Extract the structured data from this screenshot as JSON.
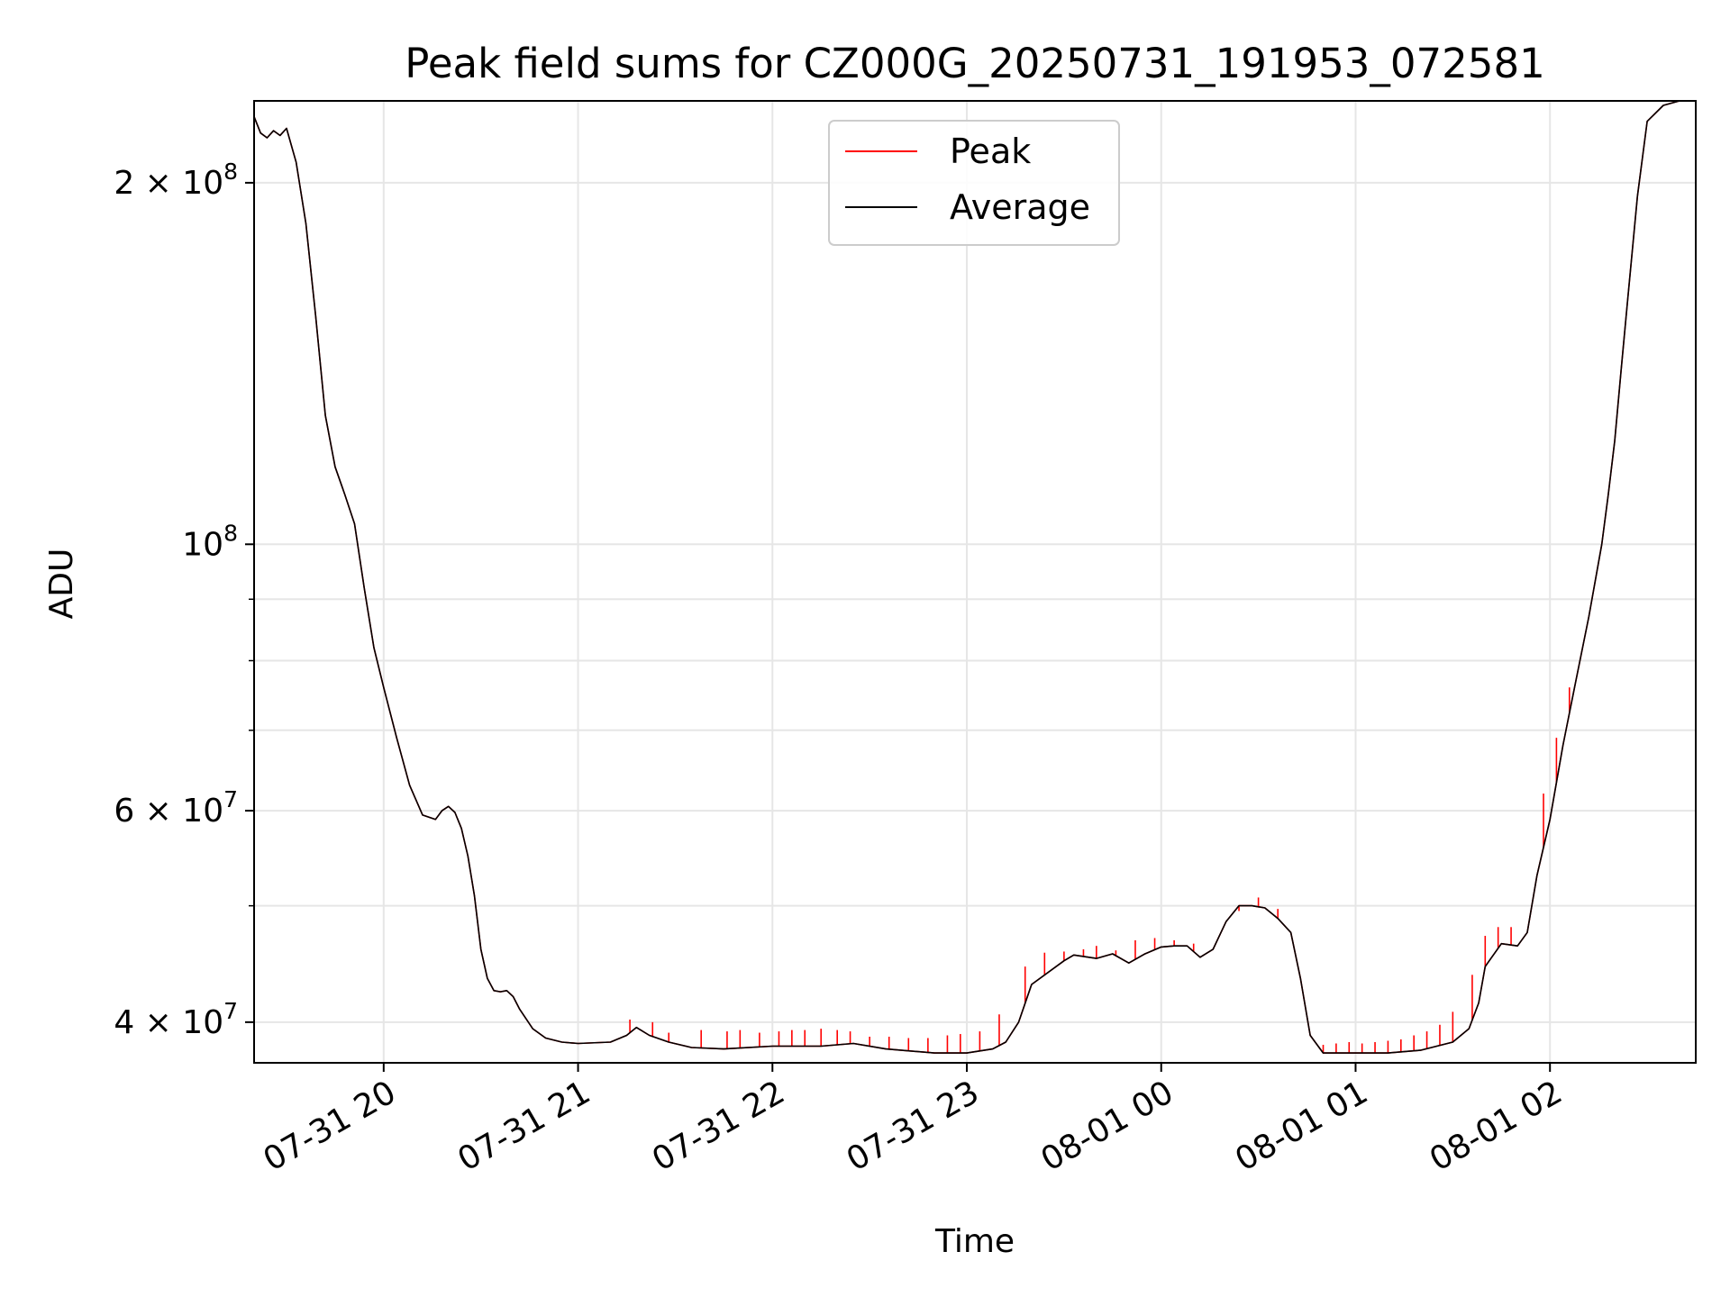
{
  "chart_data": {
    "type": "line",
    "title": "Peak field sums for CZ000G_20250731_191953_072581",
    "xlabel": "Time",
    "ylabel": "ADU",
    "y_scale": "log",
    "ylim": [
      37000000,
      234000000
    ],
    "xlim": [
      "2025-07-31 19:20",
      "2025-08-01 02:45"
    ],
    "grid": true,
    "legend": "upper center",
    "x_ticks": [
      {
        "value": "2025-07-31 20:00",
        "label": "07-31 20"
      },
      {
        "value": "2025-07-31 21:00",
        "label": "07-31 21"
      },
      {
        "value": "2025-07-31 22:00",
        "label": "07-31 22"
      },
      {
        "value": "2025-07-31 23:00",
        "label": "07-31 23"
      },
      {
        "value": "2025-08-01 00:00",
        "label": "08-01 00"
      },
      {
        "value": "2025-08-01 01:00",
        "label": "08-01 01"
      },
      {
        "value": "2025-08-01 02:00",
        "label": "08-01 02"
      }
    ],
    "y_ticks": [
      {
        "value": 40000000,
        "base": "4 × 10",
        "exp": "7"
      },
      {
        "value": 60000000,
        "base": "6 × 10",
        "exp": "7"
      },
      {
        "value": 100000000,
        "base": "10",
        "exp": "8"
      },
      {
        "value": 200000000,
        "base": "2 × 10",
        "exp": "8"
      }
    ],
    "y_minor": [
      50000000,
      70000000,
      80000000,
      90000000
    ],
    "series": [
      {
        "name": "Peak",
        "color": "#ff0000"
      },
      {
        "name": "Average",
        "color": "#000000",
        "x": [
          "2025-07-31 19:20",
          "2025-07-31 19:22",
          "2025-07-31 19:24",
          "2025-07-31 19:26",
          "2025-07-31 19:28",
          "2025-07-31 19:30",
          "2025-07-31 19:33",
          "2025-07-31 19:36",
          "2025-07-31 19:39",
          "2025-07-31 19:42",
          "2025-07-31 19:45",
          "2025-07-31 19:48",
          "2025-07-31 19:51",
          "2025-07-31 19:54",
          "2025-07-31 19:57",
          "2025-07-31 20:00",
          "2025-07-31 20:04",
          "2025-07-31 20:08",
          "2025-07-31 20:12",
          "2025-07-31 20:16",
          "2025-07-31 20:18",
          "2025-07-31 20:20",
          "2025-07-31 20:22",
          "2025-07-31 20:24",
          "2025-07-31 20:26",
          "2025-07-31 20:28",
          "2025-07-31 20:30",
          "2025-07-31 20:32",
          "2025-07-31 20:34",
          "2025-07-31 20:36",
          "2025-07-31 20:38",
          "2025-07-31 20:40",
          "2025-07-31 20:42",
          "2025-07-31 20:46",
          "2025-07-31 20:50",
          "2025-07-31 20:55",
          "2025-07-31 21:00",
          "2025-07-31 21:10",
          "2025-07-31 21:15",
          "2025-07-31 21:18",
          "2025-07-31 21:22",
          "2025-07-31 21:28",
          "2025-07-31 21:35",
          "2025-07-31 21:45",
          "2025-07-31 22:00",
          "2025-07-31 22:15",
          "2025-07-31 22:25",
          "2025-07-31 22:35",
          "2025-07-31 22:50",
          "2025-07-31 23:00",
          "2025-07-31 23:08",
          "2025-07-31 23:12",
          "2025-07-31 23:16",
          "2025-07-31 23:20",
          "2025-07-31 23:30",
          "2025-07-31 23:33",
          "2025-07-31 23:40",
          "2025-07-31 23:45",
          "2025-07-31 23:50",
          "2025-07-31 23:55",
          "2025-08-01 00:00",
          "2025-08-01 00:04",
          "2025-08-01 00:08",
          "2025-08-01 00:12",
          "2025-08-01 00:16",
          "2025-08-01 00:20",
          "2025-08-01 00:24",
          "2025-08-01 00:28",
          "2025-08-01 00:32",
          "2025-08-01 00:36",
          "2025-08-01 00:40",
          "2025-08-01 00:43",
          "2025-08-01 00:46",
          "2025-08-01 00:50",
          "2025-08-01 00:55",
          "2025-08-01 01:00",
          "2025-08-01 01:10",
          "2025-08-01 01:20",
          "2025-08-01 01:30",
          "2025-08-01 01:35",
          "2025-08-01 01:38",
          "2025-08-01 01:40",
          "2025-08-01 01:45",
          "2025-08-01 01:50",
          "2025-08-01 01:53",
          "2025-08-01 01:56",
          "2025-08-01 02:00",
          "2025-08-01 02:04",
          "2025-08-01 02:08",
          "2025-08-01 02:12",
          "2025-08-01 02:16",
          "2025-08-01 02:18",
          "2025-08-01 02:20",
          "2025-08-01 02:22",
          "2025-08-01 02:24",
          "2025-08-01 02:27",
          "2025-08-01 02:30",
          "2025-08-01 02:35",
          "2025-08-01 02:40",
          "2025-08-01 02:45"
        ],
        "y": [
          227000000,
          220000000,
          218000000,
          221000000,
          219000000,
          222000000,
          208000000,
          185000000,
          155000000,
          128000000,
          116000000,
          110000000,
          104000000,
          92000000,
          82000000,
          76000000,
          69000000,
          63000000,
          59500000,
          59000000,
          60000000,
          60500000,
          59800000,
          58000000,
          55000000,
          51000000,
          46000000,
          43500000,
          42500000,
          42400000,
          42500000,
          42000000,
          41000000,
          39500000,
          38800000,
          38500000,
          38400000,
          38500000,
          39000000,
          39600000,
          39000000,
          38500000,
          38100000,
          38000000,
          38200000,
          38200000,
          38400000,
          38000000,
          37700000,
          37700000,
          38000000,
          38500000,
          40000000,
          43000000,
          45000000,
          45500000,
          45200000,
          45600000,
          44800000,
          45600000,
          46200000,
          46300000,
          46300000,
          45300000,
          46000000,
          48500000,
          50000000,
          50000000,
          49800000,
          48800000,
          47500000,
          43500000,
          39000000,
          37700000,
          37700000,
          37700000,
          37700000,
          37900000,
          38500000,
          39500000,
          41500000,
          44500000,
          46500000,
          46300000,
          47500000,
          53000000,
          59000000,
          68000000,
          77000000,
          87000000,
          100000000,
          110000000,
          122000000,
          140000000,
          160000000,
          195000000,
          225000000,
          232000000,
          234000000,
          234000000
        ]
      }
    ],
    "peak_spikes": [
      [
        "2025-07-31 21:16",
        40200000
      ],
      [
        "2025-07-31 21:23",
        40000000
      ],
      [
        "2025-07-31 21:28",
        39200000
      ],
      [
        "2025-07-31 21:38",
        39400000
      ],
      [
        "2025-07-31 21:46",
        39300000
      ],
      [
        "2025-07-31 21:50",
        39400000
      ],
      [
        "2025-07-31 21:56",
        39200000
      ],
      [
        "2025-07-31 22:02",
        39300000
      ],
      [
        "2025-07-31 22:06",
        39400000
      ],
      [
        "2025-07-31 22:10",
        39400000
      ],
      [
        "2025-07-31 22:15",
        39500000
      ],
      [
        "2025-07-31 22:20",
        39400000
      ],
      [
        "2025-07-31 22:24",
        39300000
      ],
      [
        "2025-07-31 22:30",
        38900000
      ],
      [
        "2025-07-31 22:36",
        38900000
      ],
      [
        "2025-07-31 22:42",
        38800000
      ],
      [
        "2025-07-31 22:48",
        38800000
      ],
      [
        "2025-07-31 22:54",
        39000000
      ],
      [
        "2025-07-31 22:58",
        39100000
      ],
      [
        "2025-07-31 23:04",
        39300000
      ],
      [
        "2025-07-31 23:10",
        40600000
      ],
      [
        "2025-07-31 23:18",
        44500000
      ],
      [
        "2025-07-31 23:24",
        45700000
      ],
      [
        "2025-07-31 23:30",
        45800000
      ],
      [
        "2025-07-31 23:36",
        46000000
      ],
      [
        "2025-07-31 23:40",
        46300000
      ],
      [
        "2025-07-31 23:46",
        45900000
      ],
      [
        "2025-07-31 23:52",
        46800000
      ],
      [
        "2025-07-31 23:58",
        47000000
      ],
      [
        "2025-08-01 00:04",
        46800000
      ],
      [
        "2025-08-01 00:10",
        46500000
      ],
      [
        "2025-08-01 00:18",
        47200000
      ],
      [
        "2025-08-01 00:24",
        49500000
      ],
      [
        "2025-08-01 00:30",
        50800000
      ],
      [
        "2025-08-01 00:36",
        49700000
      ],
      [
        "2025-08-01 00:50",
        38300000
      ],
      [
        "2025-08-01 00:54",
        38400000
      ],
      [
        "2025-08-01 00:58",
        38500000
      ],
      [
        "2025-08-01 01:02",
        38400000
      ],
      [
        "2025-08-01 01:06",
        38500000
      ],
      [
        "2025-08-01 01:10",
        38600000
      ],
      [
        "2025-08-01 01:14",
        38700000
      ],
      [
        "2025-08-01 01:18",
        39000000
      ],
      [
        "2025-08-01 01:22",
        39300000
      ],
      [
        "2025-08-01 01:26",
        39800000
      ],
      [
        "2025-08-01 01:30",
        40800000
      ],
      [
        "2025-08-01 01:36",
        43800000
      ],
      [
        "2025-08-01 01:40",
        47200000
      ],
      [
        "2025-08-01 01:44",
        48000000
      ],
      [
        "2025-08-01 01:48",
        48000000
      ],
      [
        "2025-08-01 01:58",
        62000000
      ],
      [
        "2025-08-01 02:02",
        69000000
      ],
      [
        "2025-08-01 02:06",
        76000000
      ]
    ]
  }
}
